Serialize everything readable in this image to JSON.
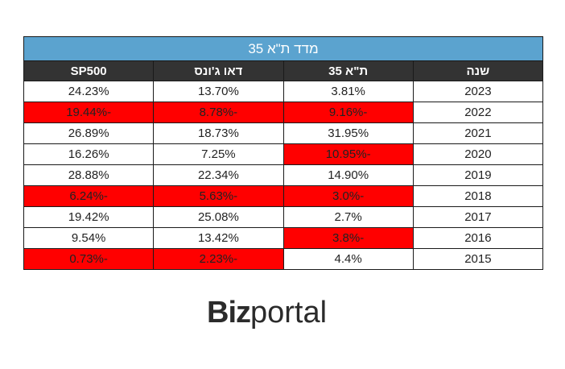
{
  "table": {
    "title": "מדד ת\"א 35",
    "headers": [
      "שנה",
      "ת\"א 35",
      "דאו ג'ונס",
      "SP500"
    ],
    "rows": [
      {
        "year": "2023",
        "ta35": "3.81%",
        "dow": "13.70%",
        "sp500": "24.23%",
        "neg": [
          false,
          false,
          false
        ]
      },
      {
        "year": "2022",
        "ta35": "-9.16%",
        "dow": "-8.78%",
        "sp500": "-19.44%",
        "neg": [
          true,
          true,
          true
        ]
      },
      {
        "year": "2021",
        "ta35": "31.95%",
        "dow": "18.73%",
        "sp500": "26.89%",
        "neg": [
          false,
          false,
          false
        ]
      },
      {
        "year": "2020",
        "ta35": "-10.95%",
        "dow": "7.25%",
        "sp500": "16.26%",
        "neg": [
          true,
          false,
          false
        ]
      },
      {
        "year": "2019",
        "ta35": "14.90%",
        "dow": "22.34%",
        "sp500": "28.88%",
        "neg": [
          false,
          false,
          false
        ]
      },
      {
        "year": "2018",
        "ta35": "-3.0%",
        "dow": "-5.63%",
        "sp500": "-6.24%",
        "neg": [
          true,
          true,
          true
        ]
      },
      {
        "year": "2017",
        "ta35": "2.7%",
        "dow": "25.08%",
        "sp500": "19.42%",
        "neg": [
          false,
          false,
          false
        ]
      },
      {
        "year": "2016",
        "ta35": "-3.8%",
        "dow": "13.42%",
        "sp500": "9.54%",
        "neg": [
          true,
          false,
          false
        ]
      },
      {
        "year": "2015",
        "ta35": "4.4%",
        "dow": "-2.23%",
        "sp500": "-0.73%",
        "neg": [
          false,
          true,
          true
        ]
      }
    ]
  },
  "logo": {
    "part1": "Biz",
    "part2": "portal"
  },
  "colors": {
    "title_bg": "#5ba3cf",
    "header_bg": "#333333",
    "negative_bg": "#ff0000"
  }
}
